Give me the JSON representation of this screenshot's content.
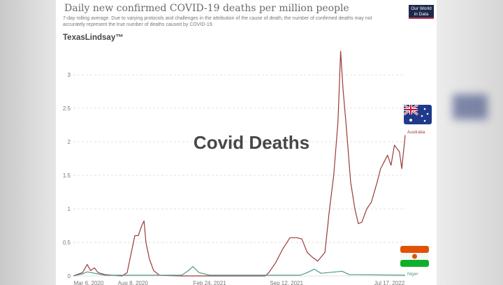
{
  "chart_data": {
    "type": "line",
    "title": "Daily new confirmed COVID-19 deaths per million people",
    "subtitle": "7-day rolling average. Due to varying protocols and challenges in the attribution of the cause of death, the number of confirmed deaths may not accurately represent the true number of deaths caused by COVID-19.",
    "x_unit": "days since Mar 6, 2020",
    "xlim": [
      0,
      864
    ],
    "ylim": [
      0,
      3.35
    ],
    "y_ticks": [
      0,
      0.5,
      1,
      1.5,
      2,
      2.5,
      3
    ],
    "y_tick_labels": [
      "0",
      "0.5",
      "1",
      "1.5",
      "2",
      "2.5",
      "3"
    ],
    "x_ticks": [
      {
        "day": 0,
        "label": "Mar 6, 2020"
      },
      {
        "day": 155,
        "label": "Aug 8, 2020"
      },
      {
        "day": 355,
        "label": "Feb 24, 2021"
      },
      {
        "day": 555,
        "label": "Sep 12, 2021"
      },
      {
        "day": 863,
        "label": "Jul 17, 2022"
      }
    ],
    "grid": true,
    "series": [
      {
        "name": "Australia",
        "color": "#9a3a3a",
        "points": [
          [
            0,
            0
          ],
          [
            24,
            0.05
          ],
          [
            36,
            0.17
          ],
          [
            45,
            0.08
          ],
          [
            55,
            0.12
          ],
          [
            64,
            0.05
          ],
          [
            82,
            0.02
          ],
          [
            127,
            0
          ],
          [
            140,
            0.05
          ],
          [
            151,
            0.35
          ],
          [
            160,
            0.6
          ],
          [
            169,
            0.6
          ],
          [
            178,
            0.75
          ],
          [
            184,
            0.82
          ],
          [
            189,
            0.5
          ],
          [
            198,
            0.25
          ],
          [
            209,
            0.08
          ],
          [
            224,
            0.01
          ],
          [
            282,
            0
          ],
          [
            500,
            0
          ],
          [
            509,
            0.05
          ],
          [
            527,
            0.2
          ],
          [
            545,
            0.4
          ],
          [
            564,
            0.57
          ],
          [
            582,
            0.57
          ],
          [
            595,
            0.55
          ],
          [
            609,
            0.35
          ],
          [
            622,
            0.28
          ],
          [
            636,
            0.22
          ],
          [
            655,
            0.35
          ],
          [
            667,
            1.0
          ],
          [
            678,
            1.5
          ],
          [
            689,
            2.3
          ],
          [
            696,
            3.35
          ],
          [
            702,
            2.8
          ],
          [
            711,
            2.2
          ],
          [
            722,
            1.4
          ],
          [
            733,
            1.0
          ],
          [
            742,
            0.78
          ],
          [
            751,
            0.8
          ],
          [
            764,
            1.0
          ],
          [
            776,
            1.1
          ],
          [
            791,
            1.4
          ],
          [
            800,
            1.6
          ],
          [
            809,
            1.7
          ],
          [
            818,
            1.8
          ],
          [
            827,
            1.65
          ],
          [
            836,
            1.95
          ],
          [
            849,
            1.85
          ],
          [
            855,
            1.6
          ],
          [
            864,
            2.1
          ]
        ]
      },
      {
        "name": "Niger",
        "color": "#4e9a8a",
        "points": [
          [
            0,
            0
          ],
          [
            24,
            0.03
          ],
          [
            36,
            0.06
          ],
          [
            55,
            0.04
          ],
          [
            82,
            0.01
          ],
          [
            282,
            0.01
          ],
          [
            300,
            0.08
          ],
          [
            311,
            0.14
          ],
          [
            327,
            0.05
          ],
          [
            355,
            0.01
          ],
          [
            591,
            0.01
          ],
          [
            609,
            0.05
          ],
          [
            627,
            0.1
          ],
          [
            645,
            0.04
          ],
          [
            700,
            0.07
          ],
          [
            718,
            0.02
          ],
          [
            864,
            0.01
          ]
        ]
      }
    ],
    "legend_placement": "right (line-end labels)"
  },
  "header": {
    "brand_watermark": "TexasLindsay™",
    "logo_line1": "Our World",
    "logo_line2": "in Data"
  },
  "overlay_text": "Covid Deaths"
}
